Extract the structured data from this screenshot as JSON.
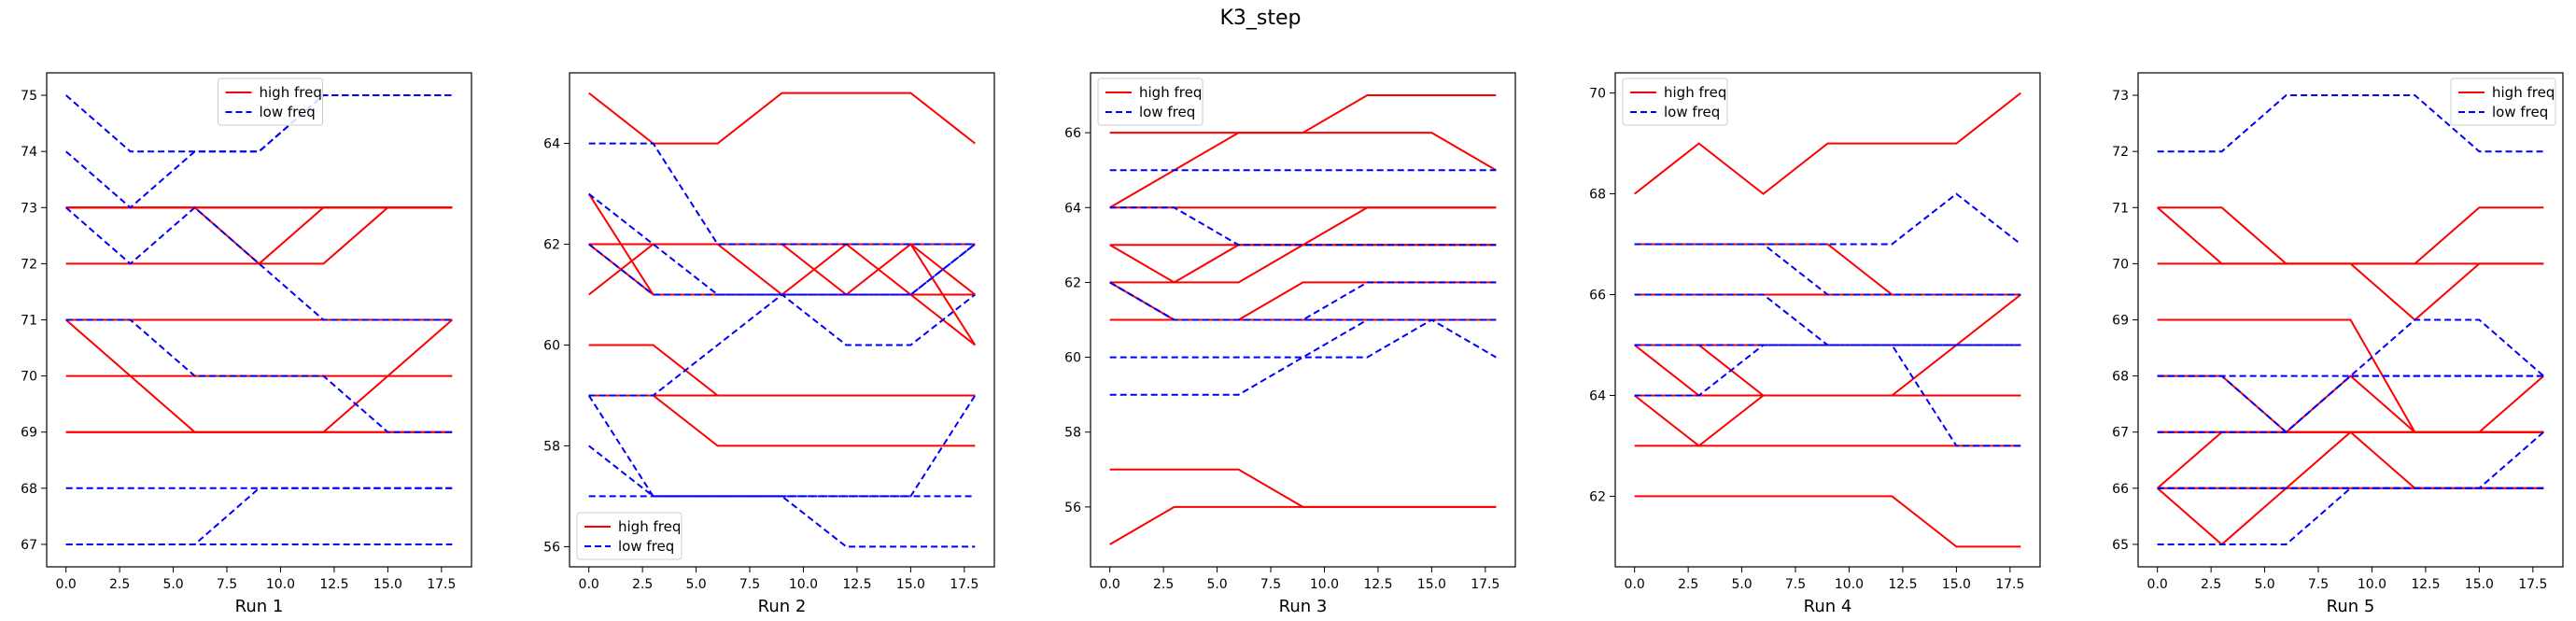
{
  "figure": {
    "title": "K3_step"
  },
  "colors": {
    "high": "#ff0000",
    "low": "#0000ff"
  },
  "legend_labels": {
    "high": "high freq",
    "low": "low freq"
  },
  "chart_data": [
    {
      "type": "line",
      "xlabel": "Run 1",
      "x": [
        0,
        3,
        6,
        9,
        12,
        15,
        18
      ],
      "xticks": [
        "0.0",
        "2.5",
        "5.0",
        "7.5",
        "10.0",
        "12.5",
        "15.0",
        "17.5"
      ],
      "ylim": [
        66.6,
        75.4
      ],
      "yticks": [
        67,
        68,
        69,
        70,
        71,
        72,
        73,
        74,
        75
      ],
      "legend": "upper-center",
      "high": [
        [
          72,
          72,
          72,
          72,
          72,
          73,
          73
        ],
        [
          73,
          73,
          73,
          72,
          73,
          73,
          73
        ],
        [
          73,
          73,
          73,
          73,
          73,
          73,
          73
        ],
        [
          71,
          71,
          71,
          71,
          71,
          71,
          71
        ],
        [
          71,
          71,
          71,
          71,
          71,
          71,
          71
        ],
        [
          70,
          70,
          70,
          70,
          70,
          70,
          70
        ],
        [
          71,
          70,
          69,
          69,
          69,
          70,
          71
        ],
        [
          69,
          69,
          69,
          69,
          69,
          69,
          69
        ],
        [
          69,
          69,
          69,
          69,
          69,
          69,
          69
        ],
        [
          73,
          73,
          73,
          73,
          73,
          73,
          73
        ]
      ],
      "low": [
        [
          75,
          74,
          74,
          74,
          75,
          75,
          75
        ],
        [
          74,
          73,
          74,
          74,
          75,
          75,
          75
        ],
        [
          73,
          72,
          73,
          72,
          71,
          71,
          71
        ],
        [
          71,
          71,
          70,
          70,
          70,
          69,
          69
        ],
        [
          68,
          68,
          68,
          68,
          68,
          68,
          68
        ],
        [
          67,
          67,
          67,
          68,
          68,
          68,
          68
        ],
        [
          67,
          67,
          67,
          67,
          67,
          67,
          67
        ]
      ]
    },
    {
      "type": "line",
      "xlabel": "Run 2",
      "x": [
        0,
        3,
        6,
        9,
        12,
        15,
        18
      ],
      "xticks": [
        "0.0",
        "2.5",
        "5.0",
        "7.5",
        "10.0",
        "12.5",
        "15.0",
        "17.5"
      ],
      "ylim": [
        55.6,
        65.4
      ],
      "yticks": [
        56,
        58,
        60,
        62,
        64
      ],
      "legend": "lower-left",
      "high": [
        [
          65,
          64,
          64,
          65,
          65,
          65,
          64
        ],
        [
          61,
          62,
          62,
          62,
          62,
          62,
          61
        ],
        [
          63,
          61,
          61,
          61,
          62,
          61,
          61
        ],
        [
          62,
          61,
          61,
          61,
          61,
          62,
          60
        ],
        [
          62,
          62,
          62,
          62,
          62,
          62,
          62
        ],
        [
          60,
          60,
          59,
          59,
          59,
          59,
          59
        ],
        [
          59,
          59,
          59,
          59,
          59,
          59,
          59
        ],
        [
          59,
          59,
          58,
          58,
          58,
          58,
          58
        ],
        [
          62,
          62,
          62,
          61,
          61,
          61,
          60
        ],
        [
          62,
          62,
          62,
          62,
          61,
          61,
          61
        ]
      ],
      "low": [
        [
          64,
          64,
          62,
          62,
          62,
          62,
          62
        ],
        [
          63,
          62,
          61,
          61,
          60,
          60,
          61
        ],
        [
          62,
          61,
          61,
          61,
          61,
          61,
          62
        ],
        [
          59,
          59,
          60,
          61,
          61,
          61,
          62
        ],
        [
          59,
          57,
          57,
          57,
          57,
          57,
          57
        ],
        [
          58,
          57,
          57,
          57,
          57,
          57,
          59
        ],
        [
          57,
          57,
          57,
          57,
          56,
          56,
          56
        ]
      ]
    },
    {
      "type": "line",
      "xlabel": "Run 3",
      "x": [
        0,
        3,
        6,
        9,
        12,
        15,
        18
      ],
      "xticks": [
        "0.0",
        "2.5",
        "5.0",
        "7.5",
        "10.0",
        "12.5",
        "15.0",
        "17.5"
      ],
      "ylim": [
        54.4,
        67.6
      ],
      "yticks": [
        56,
        58,
        60,
        62,
        64,
        66
      ],
      "legend": "upper-left",
      "high": [
        [
          66,
          66,
          66,
          66,
          67,
          67,
          67
        ],
        [
          64,
          65,
          66,
          66,
          66,
          66,
          65
        ],
        [
          64,
          64,
          64,
          64,
          64,
          64,
          64
        ],
        [
          63,
          62,
          63,
          63,
          64,
          64,
          64
        ],
        [
          62,
          62,
          62,
          63,
          63,
          63,
          63
        ],
        [
          63,
          63,
          63,
          63,
          63,
          63,
          63
        ],
        [
          62,
          61,
          61,
          62,
          62,
          62,
          62
        ],
        [
          61,
          61,
          61,
          61,
          61,
          61,
          61
        ],
        [
          57,
          57,
          57,
          56,
          56,
          56,
          56
        ],
        [
          55,
          56,
          56,
          56,
          56,
          56,
          56
        ]
      ],
      "low": [
        [
          65,
          65,
          65,
          65,
          65,
          65,
          65
        ],
        [
          64,
          64,
          63,
          63,
          63,
          63,
          63
        ],
        [
          62,
          61,
          61,
          61,
          61,
          61,
          61
        ],
        [
          62,
          61,
          61,
          61,
          62,
          62,
          62
        ],
        [
          60,
          60,
          60,
          60,
          60,
          61,
          60
        ],
        [
          59,
          59,
          59,
          60,
          61,
          61,
          61
        ]
      ]
    },
    {
      "type": "line",
      "xlabel": "Run 4",
      "x": [
        0,
        3,
        6,
        9,
        12,
        15,
        18
      ],
      "xticks": [
        "0.0",
        "2.5",
        "5.0",
        "7.5",
        "10.0",
        "12.5",
        "15.0",
        "17.5"
      ],
      "ylim": [
        60.6,
        70.4
      ],
      "yticks": [
        62,
        64,
        66,
        68,
        70
      ],
      "legend": "upper-left",
      "high": [
        [
          68,
          69,
          68,
          69,
          69,
          69,
          70
        ],
        [
          67,
          67,
          67,
          67,
          66,
          66,
          66
        ],
        [
          66,
          66,
          66,
          66,
          66,
          66,
          66
        ],
        [
          65,
          65,
          64,
          64,
          64,
          64,
          64
        ],
        [
          64,
          63,
          64,
          64,
          64,
          65,
          66
        ],
        [
          65,
          64,
          64,
          64,
          64,
          64,
          64
        ],
        [
          64,
          64,
          64,
          64,
          64,
          64,
          64
        ],
        [
          65,
          65,
          65,
          65,
          65,
          65,
          65
        ],
        [
          63,
          63,
          63,
          63,
          63,
          63,
          63
        ],
        [
          62,
          62,
          62,
          62,
          62,
          61,
          61
        ]
      ],
      "low": [
        [
          67,
          67,
          67,
          67,
          67,
          68,
          67
        ],
        [
          67,
          67,
          67,
          66,
          66,
          66,
          66
        ],
        [
          66,
          66,
          66,
          65,
          65,
          63,
          63
        ],
        [
          65,
          65,
          65,
          65,
          65,
          65,
          65
        ],
        [
          64,
          64,
          65,
          65,
          65,
          65,
          65
        ]
      ]
    },
    {
      "type": "line",
      "xlabel": "Run 5",
      "x": [
        0,
        3,
        6,
        9,
        12,
        15,
        18
      ],
      "xticks": [
        "0.0",
        "2.5",
        "5.0",
        "7.5",
        "10.0",
        "12.5",
        "15.0",
        "17.5"
      ],
      "ylim": [
        64.6,
        73.4
      ],
      "yticks": [
        65,
        66,
        67,
        68,
        69,
        70,
        71,
        72,
        73
      ],
      "legend": "upper-right",
      "high": [
        [
          71,
          71,
          70,
          70,
          70,
          71,
          71
        ],
        [
          71,
          70,
          70,
          70,
          69,
          70,
          70
        ],
        [
          70,
          70,
          70,
          70,
          70,
          70,
          70
        ],
        [
          69,
          69,
          69,
          69,
          67,
          67,
          67
        ],
        [
          68,
          68,
          67,
          67,
          67,
          67,
          68
        ],
        [
          67,
          67,
          67,
          67,
          67,
          67,
          67
        ],
        [
          66,
          65,
          66,
          67,
          66,
          66,
          66
        ],
        [
          66,
          67,
          67,
          68,
          67,
          67,
          67
        ],
        [
          66,
          66,
          66,
          66,
          66,
          66,
          66
        ],
        [
          67,
          67,
          67,
          67,
          67,
          67,
          67
        ]
      ],
      "low": [
        [
          72,
          72,
          73,
          73,
          73,
          72,
          72
        ],
        [
          68,
          68,
          68,
          68,
          69,
          69,
          68
        ],
        [
          68,
          68,
          67,
          68,
          68,
          68,
          68
        ],
        [
          67,
          67,
          67,
          68,
          68,
          68,
          68
        ],
        [
          66,
          66,
          66,
          66,
          66,
          66,
          67
        ],
        [
          65,
          65,
          65,
          66,
          66,
          66,
          66
        ],
        [
          66,
          66,
          66,
          66,
          66,
          66,
          66
        ]
      ]
    }
  ]
}
